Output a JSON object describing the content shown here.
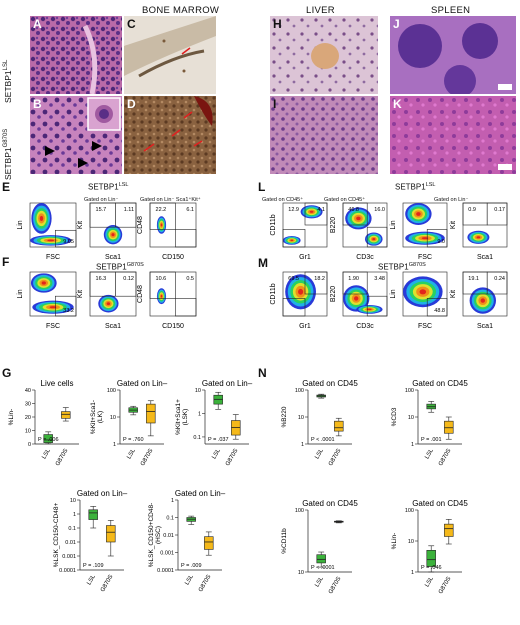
{
  "sections": {
    "bone_marrow": "BONE MARROW",
    "liver": "LIVER",
    "spleen": "SPLEEN"
  },
  "histology": {
    "row_labels": {
      "lsl_prefix": "SETBP1",
      "lsl_sup": "LSL",
      "g870s_prefix": "SETBP1",
      "g870s_sup": "G870S"
    },
    "letters": [
      "A",
      "B",
      "C",
      "D",
      "H",
      "I",
      "J",
      "K"
    ]
  },
  "flow": {
    "E": {
      "letter": "E",
      "title_prefix": "SETBP1",
      "title_sup": "LSL",
      "gate1": "Gated on Lin⁻",
      "gate2": "Gated on Lin⁻ Sca1⁺Kit⁺",
      "p1": {
        "x": "FSC",
        "y": "Lin",
        "q": "9.05"
      },
      "p2": {
        "x": "Sca1",
        "y": "Kit",
        "q1": "15.7",
        "q2": "1.11"
      },
      "p3": {
        "x": "CD150",
        "y": "CD48",
        "q1": "22.2",
        "q2": "6.1"
      }
    },
    "F": {
      "letter": "F",
      "title_prefix": "SETBP1",
      "title_sup": "G870S",
      "p1": {
        "x": "FSC",
        "y": "Lin",
        "q": "33.2"
      },
      "p2": {
        "x": "Sca1",
        "y": "Kit",
        "q1": "16.3",
        "q2": "0.12"
      },
      "p3": {
        "x": "CD150",
        "y": "CD48",
        "q1": "10.6",
        "q2": "0.5"
      }
    },
    "L": {
      "letter": "L",
      "title_prefix": "SETBP1",
      "title_sup": "LSL",
      "gate1": "Gated on CD45⁺",
      "gate2": "Gated on CD45⁺",
      "gate3": "Gated on Lin⁻",
      "p1": {
        "x": "Gr1",
        "y": "CD11b",
        "q1": "12.9",
        "q2": "4.1"
      },
      "p2": {
        "x": "CD3c",
        "y": "B220",
        "q1": "46.8",
        "q2": "16.0"
      },
      "p3": {
        "x": "FSC",
        "y": "Lin",
        "q": "9.0"
      },
      "p4": {
        "x": "Sca1",
        "y": "Kit",
        "q1": "0.9",
        "q2": "0.17"
      }
    },
    "M": {
      "letter": "M",
      "title_prefix": "SETBP1",
      "title_sup": "G870S",
      "p1": {
        "x": "Gr1",
        "y": "CD11b",
        "q1": "69.5",
        "q2": "18.2"
      },
      "p2": {
        "x": "CD3c",
        "y": "B220",
        "q1": "1.90",
        "q2": "3.48"
      },
      "p3": {
        "x": "FSC",
        "y": "Lin",
        "q": "48.8"
      },
      "p4": {
        "x": "Sca1",
        "y": "Kit",
        "q1": "19.1",
        "q2": "0.24"
      }
    },
    "axis_ticks": {
      "y": [
        "10⁵",
        "10⁴",
        "10³",
        "0"
      ],
      "x_fsc": [
        "50K",
        "100K",
        "150K",
        "200K",
        "250K"
      ],
      "x_log": [
        "0",
        "10³",
        "10⁴",
        "10⁵"
      ]
    }
  },
  "boxplots": {
    "G": {
      "letter": "G",
      "panels": [
        {
          "title": "Live cells",
          "ylabel": "%Lin-",
          "p": "P = .006",
          "yticks": [
            "40",
            "30",
            "20",
            "10",
            "0"
          ],
          "lsl": {
            "min": 0.2,
            "q1": 1,
            "med": 3,
            "q3": 7,
            "max": 9
          },
          "g870s": {
            "min": 17,
            "q1": 19,
            "med": 22,
            "q3": 24,
            "max": 27
          },
          "ylim": [
            0,
            40
          ],
          "log": false
        },
        {
          "title": "Gated on Lin–",
          "ylabel": "%Kit+Sca1-\n(LK)",
          "p": "P = .760",
          "yticks": [
            "100",
            "10",
            "1"
          ],
          "lsl": {
            "min": 12,
            "q1": 15,
            "med": 18,
            "q3": 22,
            "max": 25
          },
          "g870s": {
            "min": 2,
            "q1": 6,
            "med": 16,
            "q3": 30,
            "max": 40
          },
          "ylim": [
            1,
            100
          ],
          "log": true
        },
        {
          "title": "Gated on Lin–",
          "ylabel": "%Kit+Sca1+\n(LSK)",
          "p": "P = .037",
          "yticks": [
            "10",
            "1",
            "0.1"
          ],
          "lsl": {
            "min": 1.5,
            "q1": 2.5,
            "med": 4,
            "q3": 6,
            "max": 8
          },
          "g870s": {
            "min": 0.08,
            "q1": 0.12,
            "med": 0.25,
            "q3": 0.5,
            "max": 0.9
          },
          "ylim": [
            0.05,
            10
          ],
          "log": true
        },
        {
          "title": "Gated on Lin–",
          "ylabel": "%LSK_CD150-CD48+",
          "p": "P = .109",
          "yticks": [
            "10",
            "1",
            "0.1",
            "0.01",
            "0.001",
            "0.0001"
          ],
          "lsl": {
            "min": 0.1,
            "q1": 0.4,
            "med": 1.2,
            "q3": 2,
            "max": 3.5
          },
          "g870s": {
            "min": 0.001,
            "q1": 0.01,
            "med": 0.05,
            "q3": 0.15,
            "max": 0.35
          },
          "ylim": [
            0.0001,
            10
          ],
          "log": true
        },
        {
          "title": "Gated on Lin–",
          "ylabel": "%LSK_CD150+CD48-\n(HSC)",
          "p": "P = .009",
          "yticks": [
            "1",
            "0.1",
            "0.01",
            "0.001",
            "0.0001"
          ],
          "lsl": {
            "min": 0.04,
            "q1": 0.06,
            "med": 0.08,
            "q3": 0.1,
            "max": 0.12
          },
          "g870s": {
            "min": 0.0007,
            "q1": 0.0015,
            "med": 0.004,
            "q3": 0.008,
            "max": 0.015
          },
          "ylim": [
            0.0001,
            1
          ],
          "log": true
        }
      ],
      "xcats": [
        "LSL",
        "G870S"
      ]
    },
    "N": {
      "letter": "N",
      "panels": [
        {
          "title": "Gated on CD45",
          "ylabel": "%B220",
          "p": "P < .0001",
          "yticks": [
            "100",
            "10",
            "1"
          ],
          "lsl": {
            "min": 50,
            "q1": 55,
            "med": 60,
            "q3": 65,
            "max": 70
          },
          "g870s": {
            "min": 2,
            "q1": 3,
            "med": 4,
            "q3": 7,
            "max": 9
          },
          "ylim": [
            1,
            100
          ],
          "log": true
        },
        {
          "title": "Gated on CD45",
          "ylabel": "%CD3",
          "p": "P = .001",
          "yticks": [
            "100",
            "10",
            "1"
          ],
          "lsl": {
            "min": 15,
            "q1": 20,
            "med": 24,
            "q3": 30,
            "max": 38
          },
          "g870s": {
            "min": 1.5,
            "q1": 2.5,
            "med": 4,
            "q3": 7,
            "max": 10
          },
          "ylim": [
            1,
            100
          ],
          "log": true
        },
        {
          "title": "Gated on CD45",
          "ylabel": "%CD11b",
          "p": "P < .0001",
          "yticks": [
            "100",
            "10"
          ],
          "lsl": {
            "min": 12,
            "q1": 14,
            "med": 16,
            "q3": 19,
            "max": 21
          },
          "g870s": {
            "min": 62,
            "q1": 64,
            "med": 65,
            "q3": 66,
            "max": 67
          },
          "ylim": [
            10,
            100
          ],
          "log": true
        },
        {
          "title": "Gated on CD45",
          "ylabel": "%Lin-",
          "p": "P = .046",
          "yticks": [
            "100",
            "10",
            "1"
          ],
          "lsl": {
            "min": 1,
            "q1": 1.5,
            "med": 2.5,
            "q3": 5,
            "max": 7
          },
          "g870s": {
            "min": 8,
            "q1": 14,
            "med": 25,
            "q3": 35,
            "max": 50
          },
          "ylim": [
            1,
            100
          ],
          "log": true
        }
      ],
      "xcats": [
        "LSL",
        "G870S"
      ]
    }
  },
  "colors": {
    "he_pink": "#c46fb6",
    "he_purple": "#5a2e86",
    "ihc_brown": "#8a6240",
    "lsl_box": "#3bb23b",
    "g870s_box": "#f5b91a",
    "red": "#e02020"
  }
}
